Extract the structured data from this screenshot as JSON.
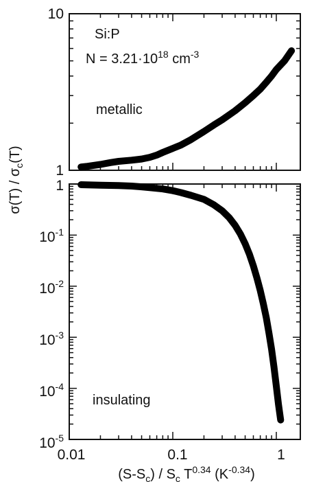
{
  "chart_data": [
    {
      "type": "line",
      "panel": "top",
      "yscale": "log",
      "xscale": "log",
      "ylim": [
        1,
        10
      ],
      "xlim": [
        0.01,
        2
      ],
      "ytick_labels": [
        {
          "value": 1,
          "label": "1"
        },
        {
          "value": 10,
          "label": "10"
        }
      ],
      "annotations": {
        "sample": "Si:P",
        "density_prefix": "N = 3.21·10",
        "density_exp": "18",
        "density_unit": " cm",
        "density_unit_exp": "-3",
        "regime": "metallic"
      },
      "series": [
        {
          "x": [
            0.013,
            0.015,
            0.02,
            0.025,
            0.03,
            0.04,
            0.05,
            0.06,
            0.07,
            0.08,
            0.1,
            0.12,
            0.15,
            0.2,
            0.25,
            0.3,
            0.4,
            0.5,
            0.6,
            0.7,
            0.8,
            0.9,
            1.0,
            1.2,
            1.4
          ],
          "y": [
            1.05,
            1.06,
            1.09,
            1.12,
            1.14,
            1.16,
            1.18,
            1.21,
            1.25,
            1.3,
            1.38,
            1.45,
            1.57,
            1.77,
            1.95,
            2.1,
            2.4,
            2.7,
            3.0,
            3.3,
            3.65,
            4.0,
            4.4,
            5.0,
            5.8
          ]
        }
      ]
    },
    {
      "type": "line",
      "panel": "bottom",
      "yscale": "log",
      "xscale": "log",
      "ylim": [
        1e-05,
        1
      ],
      "xlim": [
        0.01,
        2
      ],
      "ytick_labels": [
        {
          "value": 1,
          "base": "1",
          "exp": ""
        },
        {
          "value": 0.1,
          "base": "10",
          "exp": "-1"
        },
        {
          "value": 0.01,
          "base": "10",
          "exp": "-2"
        },
        {
          "value": 0.001,
          "base": "10",
          "exp": "-3"
        },
        {
          "value": 0.0001,
          "base": "10",
          "exp": "-4"
        },
        {
          "value": 1e-05,
          "base": "10",
          "exp": "-5"
        }
      ],
      "xtick_labels": [
        {
          "value": 0.01,
          "label": "0.01"
        },
        {
          "value": 0.1,
          "label": "0.1"
        },
        {
          "value": 1,
          "label": "1"
        }
      ],
      "annotations": {
        "regime": "insulating"
      },
      "series": [
        {
          "x": [
            0.013,
            0.015,
            0.02,
            0.03,
            0.04,
            0.05,
            0.06,
            0.08,
            0.1,
            0.12,
            0.15,
            0.2,
            0.25,
            0.3,
            0.35,
            0.4,
            0.45,
            0.5,
            0.55,
            0.6,
            0.65,
            0.7,
            0.75,
            0.8,
            0.85,
            0.9,
            0.95,
            1.0,
            1.05,
            1.1
          ],
          "y": [
            0.97,
            0.96,
            0.95,
            0.93,
            0.91,
            0.88,
            0.85,
            0.8,
            0.74,
            0.68,
            0.6,
            0.5,
            0.39,
            0.3,
            0.22,
            0.155,
            0.105,
            0.068,
            0.042,
            0.025,
            0.0145,
            0.0082,
            0.0045,
            0.0024,
            0.0012,
            0.00058,
            0.00026,
            0.00011,
            4.8e-05,
            2.4e-05
          ]
        }
      ]
    }
  ],
  "axes": {
    "ylabel": {
      "sigma": "σ",
      "lhs": "(T) / ",
      "sigma2": "σ",
      "sub": "c",
      "rhs": "(T)"
    },
    "xlabel": {
      "part1": "(S-S",
      "sub1": "c",
      "part2": ") / S",
      "sub2": "c",
      "part3": " T",
      "sup1": "0.34",
      "part4": " (K",
      "sup2": "-0.34",
      "part5": ")"
    }
  }
}
